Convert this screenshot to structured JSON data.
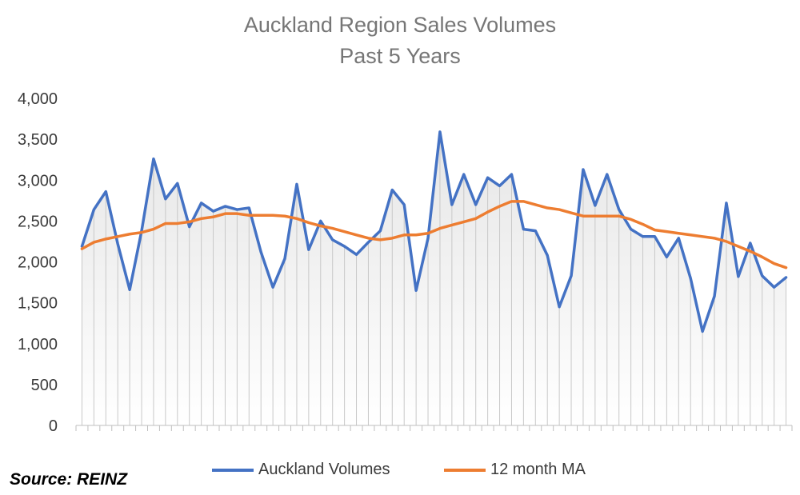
{
  "chart_data": {
    "type": "line",
    "title": "Auckland Region Sales Volumes",
    "subtitle": "Past 5 Years",
    "ylim": [
      0,
      4000
    ],
    "yticks": [
      0,
      500,
      1000,
      1500,
      2000,
      2500,
      3000,
      3500,
      4000
    ],
    "ytick_labels": [
      "0",
      "500",
      "1,000",
      "1,500",
      "2,000",
      "2,500",
      "3,000",
      "3,500",
      "4,000"
    ],
    "legend_position": "bottom",
    "series": [
      {
        "name": "Auckland Volumes",
        "color": "#4472C4",
        "values": [
          2190,
          2640,
          2860,
          2220,
          1660,
          2380,
          3260,
          2770,
          2960,
          2430,
          2720,
          2620,
          2680,
          2640,
          2660,
          2120,
          1690,
          2040,
          2950,
          2150,
          2500,
          2270,
          2190,
          2090,
          2240,
          2380,
          2880,
          2700,
          1650,
          2290,
          3590,
          2700,
          3070,
          2700,
          3030,
          2930,
          3070,
          2400,
          2380,
          2080,
          1450,
          1830,
          3130,
          2690,
          3070,
          2640,
          2400,
          2310,
          2310,
          2060,
          2290,
          1800,
          1150,
          1580,
          2720,
          1820,
          2230,
          1830,
          1690,
          1810
        ]
      },
      {
        "name": "12 month MA",
        "color": "#ED7D31",
        "values": [
          2160,
          2240,
          2280,
          2310,
          2340,
          2360,
          2400,
          2470,
          2470,
          2490,
          2530,
          2550,
          2590,
          2590,
          2570,
          2570,
          2570,
          2560,
          2530,
          2480,
          2440,
          2410,
          2370,
          2330,
          2290,
          2270,
          2290,
          2330,
          2330,
          2350,
          2410,
          2450,
          2490,
          2530,
          2610,
          2680,
          2740,
          2740,
          2700,
          2660,
          2640,
          2600,
          2560,
          2560,
          2560,
          2560,
          2520,
          2460,
          2390,
          2370,
          2350,
          2330,
          2310,
          2290,
          2250,
          2190,
          2130,
          2060,
          1980,
          1930
        ]
      }
    ],
    "source": "Source: REINZ"
  },
  "colors": {
    "grid_fill_top": "#e6e6e6",
    "grid_fill_bottom": "#ffffff",
    "drop_lines": "#c8c8c8",
    "axis": "#bfbfbf"
  }
}
